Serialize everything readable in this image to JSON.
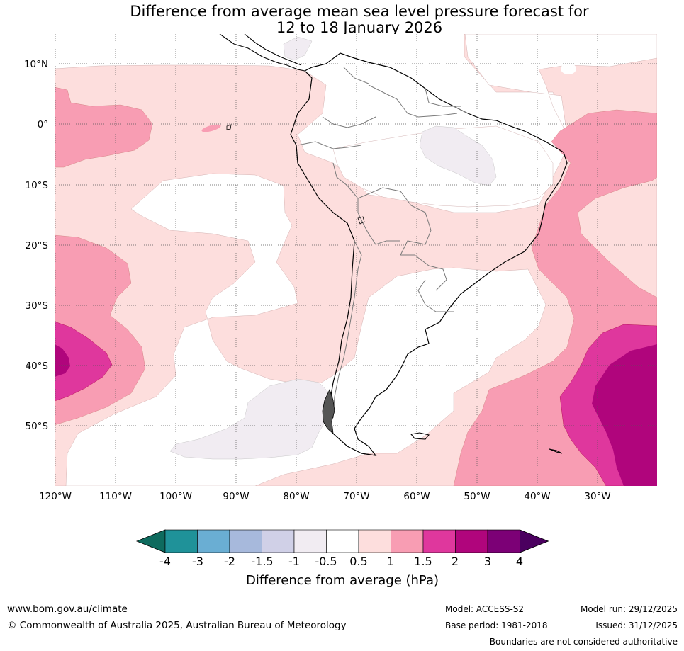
{
  "title_line1": "Difference from average mean sea level pressure forecast for",
  "title_line2": "12 to 18 January 2026",
  "lat_labels": [
    "10°N",
    "0°",
    "10°S",
    "20°S",
    "30°S",
    "40°S",
    "50°S"
  ],
  "lon_labels": [
    "120°W",
    "110°W",
    "100°W",
    "90°W",
    "80°W",
    "70°W",
    "60°W",
    "50°W",
    "40°W",
    "30°W"
  ],
  "colorbar": {
    "ticks": [
      "-4",
      "-3",
      "-2",
      "-1.5",
      "-1",
      "-0.5",
      "0.5",
      "1",
      "1.5",
      "2",
      "3",
      "4"
    ],
    "colors": [
      "#0e6b5e",
      "#1f9299",
      "#6aaed3",
      "#a7b9dc",
      "#d0d0e7",
      "#f1ecf2",
      "#ffffff",
      "#fddedd",
      "#f89db3",
      "#df379d",
      "#b0057c",
      "#7c0076",
      "#4b005f"
    ],
    "label": "Difference from average (hPa)"
  },
  "footer": {
    "url": "www.bom.gov.au/climate",
    "copyright": "© Commonwealth of Australia 2025, Australian Bureau of Meteorology",
    "model": "Model: ACCESS-S2",
    "base_period": "Base period: 1981-2018",
    "model_run": "Model run: 29/12/2025",
    "issued": "Issued: 31/12/2025",
    "disclaimer": "Boundaries are not considered authoritative"
  }
}
